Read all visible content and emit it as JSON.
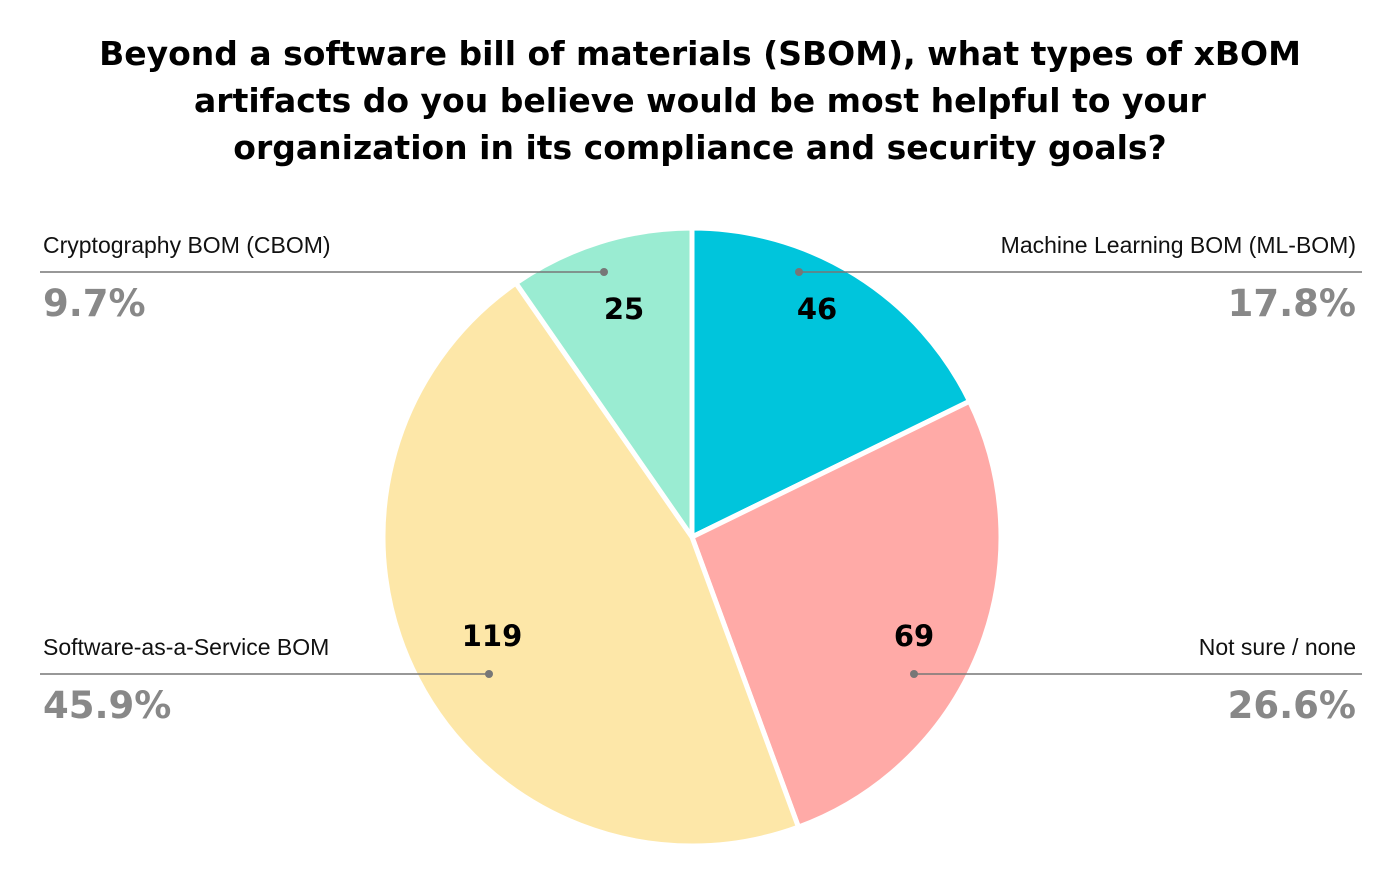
{
  "chart_data": {
    "type": "pie",
    "title_lines": [
      "Beyond a software bill of materials (SBOM), what types of xBOM",
      "artifacts do you believe would be most helpful to your",
      "organization in its compliance and security goals?"
    ],
    "slices": [
      {
        "label": "Machine Learning BOM (ML-BOM)",
        "value": 46,
        "percent": "17.8%",
        "color": "#00c5dc"
      },
      {
        "label": "Not sure / none",
        "value": 69,
        "percent": "26.6%",
        "color": "#ffaaa7"
      },
      {
        "label": "Software-as-a-Service BOM",
        "value": 119,
        "percent": "45.9%",
        "color": "#fde7a8"
      },
      {
        "label": "Cryptography BOM (CBOM)",
        "value": 25,
        "percent": "9.7%",
        "color": "#9aecd2"
      }
    ]
  }
}
